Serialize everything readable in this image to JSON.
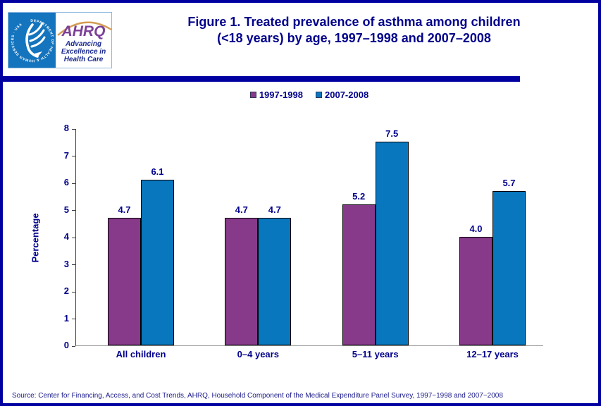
{
  "header": {
    "title_line1": "Figure 1. Treated prevalence of asthma among children",
    "title_line2": "(<18 years) by age, 1997–1998 and 2007–2008",
    "logo": {
      "seal_text": "DEPARTMENT OF HEALTH & HUMAN SERVICES · USA",
      "acronym": "AHRQ",
      "tagline1": "Advancing",
      "tagline2": "Excellence in",
      "tagline3": "Health Care"
    }
  },
  "chart_data": {
    "type": "bar",
    "title": "Figure 1. Treated prevalence of asthma among children (<18 years) by age, 1997–1998 and 2007–2008",
    "categories": [
      "All children",
      "0–4 years",
      "5–11 years",
      "12–17 years"
    ],
    "series": [
      {
        "name": "1997-1998",
        "color": "#87398A",
        "values": [
          4.7,
          4.7,
          5.2,
          4.0
        ]
      },
      {
        "name": "2007-2008",
        "color": "#0877BE",
        "values": [
          6.1,
          4.7,
          7.5,
          5.7
        ]
      }
    ],
    "xlabel": "",
    "ylabel": "Percentage",
    "ylim": [
      0,
      8
    ],
    "yticks": [
      0,
      1,
      2,
      3,
      4,
      5,
      6,
      7,
      8
    ],
    "grid": false,
    "legend_position": "top-center",
    "value_labels_decimals": 1
  },
  "source": {
    "text": "Source: Center for Financing, Access, and Cost Trends, AHRQ, Household Component of the Medical Expenditure Panel Survey, 1997−1998 and 2007−2008"
  },
  "colors": {
    "page_border_navy": "#0000A0",
    "text_navy": "#00008B",
    "series_1997_1998": "#87398A",
    "series_2007_2008": "#0877BE",
    "hhs_seal_blue": "#1474BE",
    "ahrq_purple": "#7D4199",
    "swoosh_orange": "#D49C52",
    "axis_gray": "#999999"
  }
}
